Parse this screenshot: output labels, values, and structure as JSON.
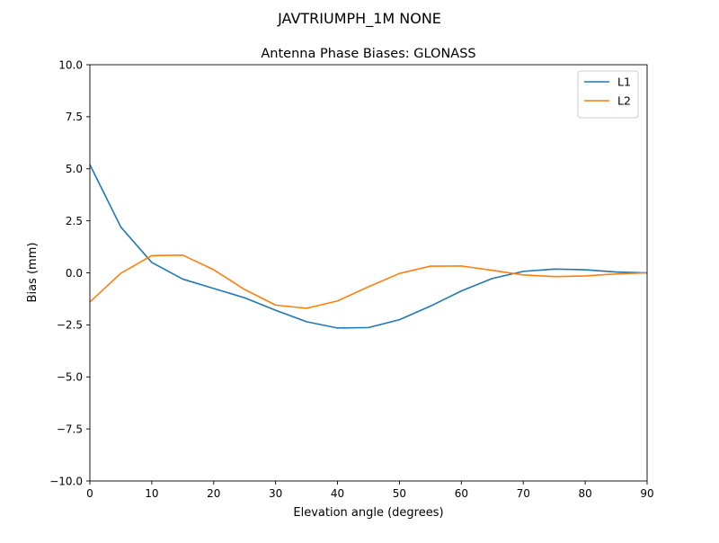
{
  "chart_data": {
    "type": "line",
    "suptitle": "JAVTRIUMPH_1M   NONE",
    "title": "Antenna Phase Biases: GLONASS",
    "xlabel": "Elevation angle (degrees)",
    "ylabel": "Bias (mm)",
    "xlim": [
      0,
      90
    ],
    "ylim": [
      -10,
      10
    ],
    "x_ticks": [
      0,
      10,
      20,
      30,
      40,
      50,
      60,
      70,
      80,
      90
    ],
    "x_tick_labels": [
      "0",
      "10",
      "20",
      "30",
      "40",
      "50",
      "60",
      "70",
      "80",
      "90"
    ],
    "y_ticks": [
      -10,
      -7.5,
      -5,
      -2.5,
      0,
      2.5,
      5,
      7.5,
      10
    ],
    "y_tick_labels": [
      "−10.0",
      "−7.5",
      "−5.0",
      "−2.5",
      "0.0",
      "2.5",
      "5.0",
      "7.5",
      "10.0"
    ],
    "grid": false,
    "legend_position": "top-right",
    "x": [
      0,
      5,
      10,
      15,
      20,
      25,
      30,
      35,
      40,
      45,
      50,
      55,
      60,
      65,
      70,
      75,
      80,
      85,
      90
    ],
    "series": [
      {
        "name": "L1",
        "color": "#1f77b4",
        "values": [
          5.2,
          2.2,
          0.5,
          -0.3,
          -0.75,
          -1.2,
          -1.8,
          -2.35,
          -2.65,
          -2.63,
          -2.25,
          -1.6,
          -0.87,
          -0.27,
          0.07,
          0.18,
          0.15,
          0.04,
          0.0
        ]
      },
      {
        "name": "L2",
        "color": "#ff7f0e",
        "values": [
          -1.4,
          -0.02,
          0.83,
          0.85,
          0.15,
          -0.8,
          -1.55,
          -1.7,
          -1.35,
          -0.67,
          -0.03,
          0.32,
          0.33,
          0.12,
          -0.1,
          -0.18,
          -0.15,
          -0.05,
          0.0
        ]
      }
    ]
  }
}
